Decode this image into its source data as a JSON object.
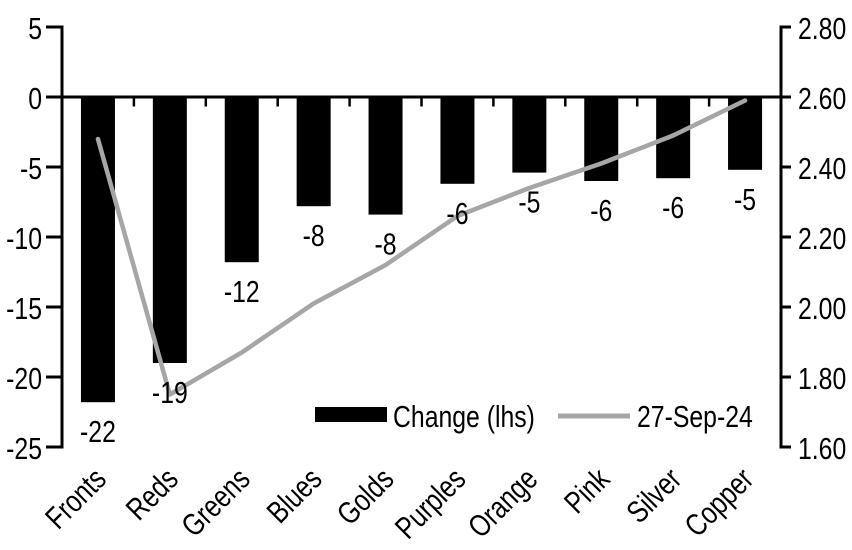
{
  "chart_data": {
    "type": "combo-bar-line",
    "categories": [
      "Fronts",
      "Reds",
      "Greens",
      "Blues",
      "Golds",
      "Purples",
      "Orange",
      "Pink",
      "Silver",
      "Copper"
    ],
    "series": [
      {
        "name": "Change (lhs)",
        "type": "bar",
        "axis": "left",
        "color": "#000000",
        "values": [
          -21.8,
          -19.0,
          -11.8,
          -7.8,
          -8.4,
          -6.2,
          -5.4,
          -6.0,
          -5.8,
          -5.2
        ],
        "labels": [
          "-22",
          "-19",
          "-12",
          "-8",
          "-8",
          "-6",
          "-5",
          "-6",
          "-6",
          "-5"
        ]
      },
      {
        "name": "27-Sep-24",
        "type": "line",
        "axis": "right",
        "color": "#a6a6a6",
        "values": [
          2.48,
          1.75,
          1.87,
          2.01,
          2.12,
          2.26,
          2.34,
          2.41,
          2.49,
          2.59
        ]
      }
    ],
    "left_axis": {
      "min": -25,
      "max": 5,
      "tick_step": 5,
      "tick_labels": [
        "5",
        "0",
        "-5",
        "-10",
        "-15",
        "-20",
        "-25"
      ]
    },
    "right_axis": {
      "min": 1.6,
      "max": 2.8,
      "tick_step": 0.2,
      "tick_labels": [
        "2.80",
        "2.60",
        "2.40",
        "2.20",
        "2.00",
        "1.80",
        "1.60"
      ]
    },
    "legend": {
      "position": "inside-bottom",
      "entries": [
        {
          "label": "Change (lhs)",
          "swatch": "bar"
        },
        {
          "label": "27-Sep-24",
          "swatch": "line"
        }
      ]
    },
    "colors": {
      "bar": "#000000",
      "line": "#a6a6a6",
      "axis": "#000000",
      "background": "#ffffff"
    },
    "grid": false
  }
}
